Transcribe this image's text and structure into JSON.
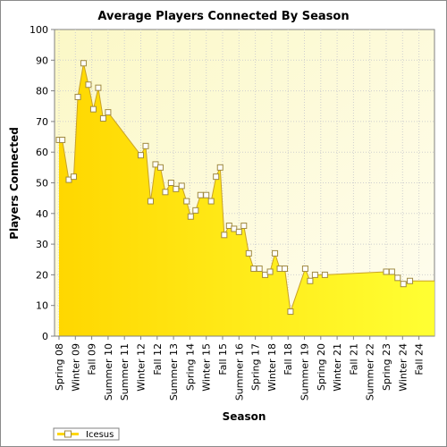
{
  "chart_data": {
    "type": "area",
    "title": "Average Players Connected By Season",
    "xlabel": "Season",
    "ylabel": "Players Connected",
    "ylim": [
      0,
      100
    ],
    "yticks": [
      0,
      10,
      20,
      30,
      40,
      50,
      60,
      70,
      80,
      90,
      100
    ],
    "grid": true,
    "legend_position": "bottom-left",
    "x_tick_labels": [
      "Spring 08",
      "Winter 09",
      "Fall 09",
      "Summer 10",
      "Summer 11",
      "Winter 12",
      "Fall 12",
      "Summer 13",
      "Spring 14",
      "Winter 15",
      "Fall 15",
      "Summer 16",
      "Spring 17",
      "Winter 18",
      "Fall 18",
      "Summer 19",
      "Spring 20",
      "Winter 21",
      "Fall 21",
      "Summer 22",
      "Spring 23",
      "Winter 24",
      "Fall 24"
    ],
    "series": [
      {
        "name": "Icesus",
        "color": "#ffd700",
        "points": [
          {
            "x": 0.0,
            "y": 64
          },
          {
            "x": 0.2,
            "y": 64
          },
          {
            "x": 0.6,
            "y": 51
          },
          {
            "x": 0.9,
            "y": 52
          },
          {
            "x": 1.15,
            "y": 78
          },
          {
            "x": 1.5,
            "y": 89
          },
          {
            "x": 1.8,
            "y": 82
          },
          {
            "x": 2.1,
            "y": 74
          },
          {
            "x": 2.4,
            "y": 81
          },
          {
            "x": 2.7,
            "y": 71
          },
          {
            "x": 3.0,
            "y": 73
          },
          {
            "x": 5.0,
            "y": 59
          },
          {
            "x": 5.3,
            "y": 62
          },
          {
            "x": 5.6,
            "y": 44
          },
          {
            "x": 5.9,
            "y": 56
          },
          {
            "x": 6.2,
            "y": 55
          },
          {
            "x": 6.5,
            "y": 47
          },
          {
            "x": 6.85,
            "y": 50
          },
          {
            "x": 7.15,
            "y": 48
          },
          {
            "x": 7.5,
            "y": 49
          },
          {
            "x": 7.8,
            "y": 44
          },
          {
            "x": 8.05,
            "y": 39
          },
          {
            "x": 8.35,
            "y": 41
          },
          {
            "x": 8.65,
            "y": 46
          },
          {
            "x": 9.0,
            "y": 46
          },
          {
            "x": 9.3,
            "y": 44
          },
          {
            "x": 9.6,
            "y": 52
          },
          {
            "x": 9.85,
            "y": 55
          },
          {
            "x": 10.1,
            "y": 33
          },
          {
            "x": 10.4,
            "y": 36
          },
          {
            "x": 10.7,
            "y": 35
          },
          {
            "x": 11.0,
            "y": 34
          },
          {
            "x": 11.3,
            "y": 36
          },
          {
            "x": 11.6,
            "y": 27
          },
          {
            "x": 11.9,
            "y": 22
          },
          {
            "x": 12.25,
            "y": 22
          },
          {
            "x": 12.6,
            "y": 20
          },
          {
            "x": 12.9,
            "y": 21
          },
          {
            "x": 13.2,
            "y": 27
          },
          {
            "x": 13.5,
            "y": 22
          },
          {
            "x": 13.8,
            "y": 22
          },
          {
            "x": 14.15,
            "y": 8
          },
          {
            "x": 15.05,
            "y": 22
          },
          {
            "x": 15.35,
            "y": 18
          },
          {
            "x": 15.65,
            "y": 20
          },
          {
            "x": 16.25,
            "y": 20
          },
          {
            "x": 20.0,
            "y": 21
          },
          {
            "x": 20.35,
            "y": 21
          },
          {
            "x": 20.7,
            "y": 19
          },
          {
            "x": 21.05,
            "y": 17
          },
          {
            "x": 21.45,
            "y": 18
          }
        ]
      }
    ]
  }
}
